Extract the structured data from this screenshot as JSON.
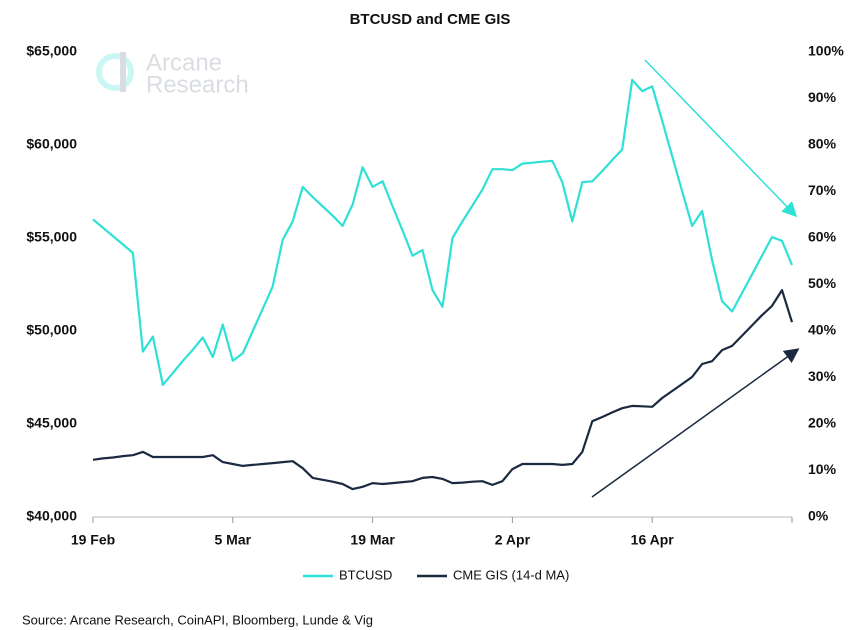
{
  "chart_data": {
    "type": "line",
    "title": "BTCUSD and CME GIS",
    "logo_text": [
      "Arcane",
      "Research"
    ],
    "source": "Source: Arcane Research, CoinAPI, Bloomberg, Lunde & Vig",
    "categories": [
      "19 Feb",
      null,
      null,
      null,
      null,
      null,
      null,
      null,
      null,
      null,
      null,
      null,
      null,
      null,
      "5 Mar",
      null,
      null,
      null,
      null,
      null,
      null,
      null,
      null,
      null,
      null,
      null,
      null,
      null,
      "19 Mar",
      null,
      null,
      null,
      null,
      null,
      null,
      null,
      null,
      null,
      null,
      null,
      null,
      null,
      "2 Apr",
      null,
      null,
      null,
      null,
      null,
      null,
      null,
      null,
      null,
      null,
      null,
      null,
      null,
      "16 Apr",
      null,
      null,
      null,
      null,
      null,
      null,
      null,
      null,
      null,
      null,
      null,
      null,
      null,
      null
    ],
    "series": [
      {
        "name": "BTCUSD",
        "color": "#2fe0d6",
        "values": [
          56000,
          55550,
          55100,
          54650,
          54200,
          48900,
          49700,
          47100,
          47750,
          48400,
          49000,
          49650,
          48600,
          50350,
          48400,
          48800,
          50000,
          51200,
          52400,
          54900,
          55900,
          57750,
          57200,
          56700,
          56200,
          55650,
          56800,
          58800,
          57750,
          58050,
          56700,
          55400,
          54050,
          54350,
          52200,
          51300,
          55000,
          55900,
          56750,
          57600,
          58700,
          58700,
          58650,
          59000,
          59050,
          59100,
          59150,
          58000,
          55900,
          58000,
          58050,
          58600,
          59200,
          59750,
          63500,
          62900,
          63150,
          61300,
          59400,
          57500,
          55650,
          56450,
          53800,
          51600,
          51050,
          52050,
          53050,
          54050,
          55050,
          54850,
          53550
        ]
      },
      {
        "name": "CME GIS (14-d MA)",
        "color": "#1b2a41",
        "axis": "y2",
        "values": [
          12.3,
          12.6,
          12.8,
          13.1,
          13.3,
          14.0,
          12.9,
          12.9,
          12.9,
          12.9,
          12.9,
          12.9,
          13.3,
          11.8,
          11.4,
          11.0,
          11.2,
          11.4,
          11.6,
          11.8,
          12.0,
          10.5,
          8.4,
          8.0,
          7.6,
          7.1,
          6.0,
          6.5,
          7.3,
          7.1,
          7.3,
          7.5,
          7.7,
          8.4,
          8.6,
          8.2,
          7.3,
          7.4,
          7.6,
          7.7,
          6.9,
          7.7,
          10.3,
          11.4,
          11.4,
          11.4,
          11.4,
          11.2,
          11.4,
          14.0,
          20.6,
          21.5,
          22.5,
          23.4,
          23.9,
          23.8,
          23.7,
          25.6,
          27.1,
          28.6,
          30.1,
          32.9,
          33.5,
          35.9,
          36.8,
          39.0,
          41.2,
          43.4,
          45.4,
          48.8,
          41.9
        ]
      }
    ],
    "ylim": [
      40000,
      65000
    ],
    "yticks": [
      {
        "value": 40000,
        "label": "$40,000"
      },
      {
        "value": 45000,
        "label": "$45,000"
      },
      {
        "value": 50000,
        "label": "$50,000"
      },
      {
        "value": 55000,
        "label": "$55,000"
      },
      {
        "value": 60000,
        "label": "$60,000"
      },
      {
        "value": 65000,
        "label": "$65,000"
      }
    ],
    "y2lim": [
      0,
      100
    ],
    "y2ticks": [
      {
        "value": 0,
        "label": "0%"
      },
      {
        "value": 10,
        "label": "10%"
      },
      {
        "value": 20,
        "label": "20%"
      },
      {
        "value": 30,
        "label": "30%"
      },
      {
        "value": 40,
        "label": "40%"
      },
      {
        "value": 50,
        "label": "50%"
      },
      {
        "value": 60,
        "label": "60%"
      },
      {
        "value": 70,
        "label": "70%"
      },
      {
        "value": 80,
        "label": "80%"
      },
      {
        "value": 90,
        "label": "90%"
      },
      {
        "value": 100,
        "label": "100%"
      }
    ],
    "grid": false,
    "legend": "bottom"
  }
}
